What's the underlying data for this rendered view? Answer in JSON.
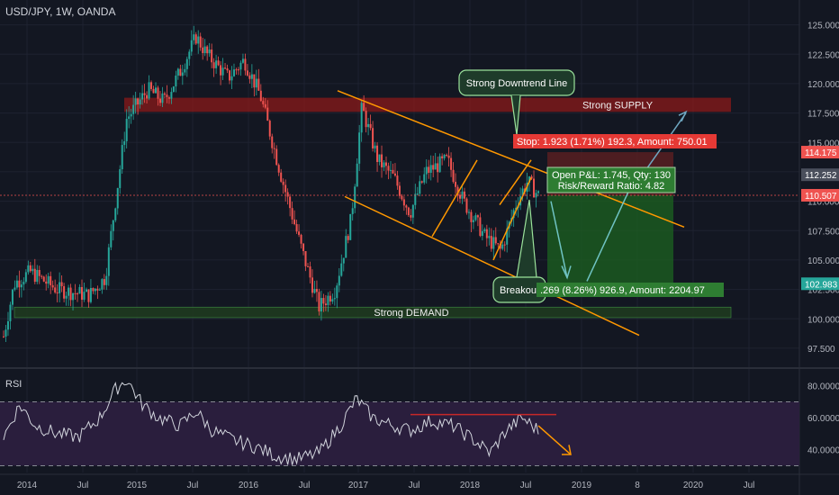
{
  "header": {
    "title": "USD/JPY, 1W, OANDA"
  },
  "colors": {
    "background": "#131722",
    "grid": "#1e2230",
    "up": "#26a69a",
    "down": "#ef5350",
    "trendline": "#ff9800",
    "supply": "#8b1a1a",
    "demand": "#1f3a1f",
    "rsi_line": "#d1d4dc",
    "rsi_band": "#2a1e3d",
    "price_line": "#ef5350",
    "label_green_bg": "#1e3b2a",
    "label_green_border": "#9be29b"
  },
  "annotations": {
    "downtrend_label": "Strong Downtrend Line",
    "supply_label": "Strong SUPPLY",
    "demand_label": "Strong DEMAND",
    "breakout_label": "Breakout",
    "stop_label": "Stop: 1.923 (1.71%) 192.3, Amount: 750.01",
    "pnl_line1": "Open P&L: 1.745, Qty: 130",
    "pnl_line2": "Risk/Reward Ratio: 4.82",
    "target_label": ".269 (8.26%) 926.9, Amount: 2204.97",
    "rsi_title": "RSI"
  },
  "chart_data": [
    {
      "type": "candlestick",
      "title": "USD/JPY, 1W, OANDA",
      "x_ticks": [
        "2014",
        "Jul",
        "2015",
        "Jul",
        "2016",
        "Jul",
        "2017",
        "Jul",
        "2018",
        "Jul",
        "2019",
        "8",
        "2020",
        "Jul"
      ],
      "y_ticks": [
        "125.000",
        "122.500",
        "120.000",
        "117.500",
        "115.000",
        "112.500",
        "110.000",
        "107.500",
        "105.000",
        "102.500",
        "100.000",
        "97.500"
      ],
      "ylim": [
        96.5,
        126.5
      ],
      "price_labels": [
        {
          "value": 114.175,
          "text": "114.175",
          "color": "#ef5350"
        },
        {
          "value": 112.252,
          "text": "112.252",
          "color": "#4a4f5c"
        },
        {
          "value": 110.507,
          "text": "110.507",
          "color": "#ef5350"
        },
        {
          "value": 102.983,
          "text": "102.983",
          "color": "#26a69a"
        }
      ],
      "price_anchors": [
        {
          "t": 0.0,
          "close": 98.5
        },
        {
          "t": 0.02,
          "close": 103.0
        },
        {
          "t": 0.05,
          "close": 104.0
        },
        {
          "t": 0.1,
          "close": 102.5
        },
        {
          "t": 0.16,
          "close": 102.0
        },
        {
          "t": 0.19,
          "close": 103.5
        },
        {
          "t": 0.23,
          "close": 117.0
        },
        {
          "t": 0.27,
          "close": 119.5
        },
        {
          "t": 0.3,
          "close": 118.5
        },
        {
          "t": 0.33,
          "close": 121.0
        },
        {
          "t": 0.36,
          "close": 124.0
        },
        {
          "t": 0.38,
          "close": 122.5
        },
        {
          "t": 0.42,
          "close": 120.5
        },
        {
          "t": 0.45,
          "close": 122.0
        },
        {
          "t": 0.48,
          "close": 119.0
        },
        {
          "t": 0.52,
          "close": 112.0
        },
        {
          "t": 0.56,
          "close": 105.5
        },
        {
          "t": 0.59,
          "close": 101.0
        },
        {
          "t": 0.62,
          "close": 102.5
        },
        {
          "t": 0.65,
          "close": 108.5
        },
        {
          "t": 0.67,
          "close": 118.0
        },
        {
          "t": 0.7,
          "close": 113.5
        },
        {
          "t": 0.73,
          "close": 112.0
        },
        {
          "t": 0.76,
          "close": 109.0
        },
        {
          "t": 0.79,
          "close": 112.5
        },
        {
          "t": 0.83,
          "close": 113.5
        },
        {
          "t": 0.86,
          "close": 110.0
        },
        {
          "t": 0.9,
          "close": 107.0
        },
        {
          "t": 0.93,
          "close": 105.8
        },
        {
          "t": 0.96,
          "close": 110.0
        },
        {
          "t": 0.98,
          "close": 111.7
        },
        {
          "t": 1.0,
          "close": 110.5
        }
      ]
    },
    {
      "type": "line",
      "title": "RSI",
      "y_ticks": [
        "80.0000",
        "60.0000",
        "40.0000"
      ],
      "ylim": [
        28,
        86
      ],
      "levels": [
        70,
        30
      ],
      "rsi_anchors": [
        {
          "t": 0.0,
          "v": 48
        },
        {
          "t": 0.03,
          "v": 68
        },
        {
          "t": 0.06,
          "v": 55
        },
        {
          "t": 0.1,
          "v": 50
        },
        {
          "t": 0.14,
          "v": 48
        },
        {
          "t": 0.18,
          "v": 60
        },
        {
          "t": 0.21,
          "v": 78
        },
        {
          "t": 0.23,
          "v": 84
        },
        {
          "t": 0.26,
          "v": 68
        },
        {
          "t": 0.29,
          "v": 60
        },
        {
          "t": 0.33,
          "v": 55
        },
        {
          "t": 0.36,
          "v": 64
        },
        {
          "t": 0.39,
          "v": 52
        },
        {
          "t": 0.43,
          "v": 46
        },
        {
          "t": 0.47,
          "v": 42
        },
        {
          "t": 0.51,
          "v": 36
        },
        {
          "t": 0.55,
          "v": 34
        },
        {
          "t": 0.59,
          "v": 38
        },
        {
          "t": 0.63,
          "v": 55
        },
        {
          "t": 0.66,
          "v": 72
        },
        {
          "t": 0.69,
          "v": 60
        },
        {
          "t": 0.72,
          "v": 56
        },
        {
          "t": 0.76,
          "v": 52
        },
        {
          "t": 0.8,
          "v": 58
        },
        {
          "t": 0.84,
          "v": 55
        },
        {
          "t": 0.88,
          "v": 46
        },
        {
          "t": 0.91,
          "v": 38
        },
        {
          "t": 0.94,
          "v": 52
        },
        {
          "t": 0.97,
          "v": 60
        },
        {
          "t": 1.0,
          "v": 52
        }
      ]
    }
  ]
}
